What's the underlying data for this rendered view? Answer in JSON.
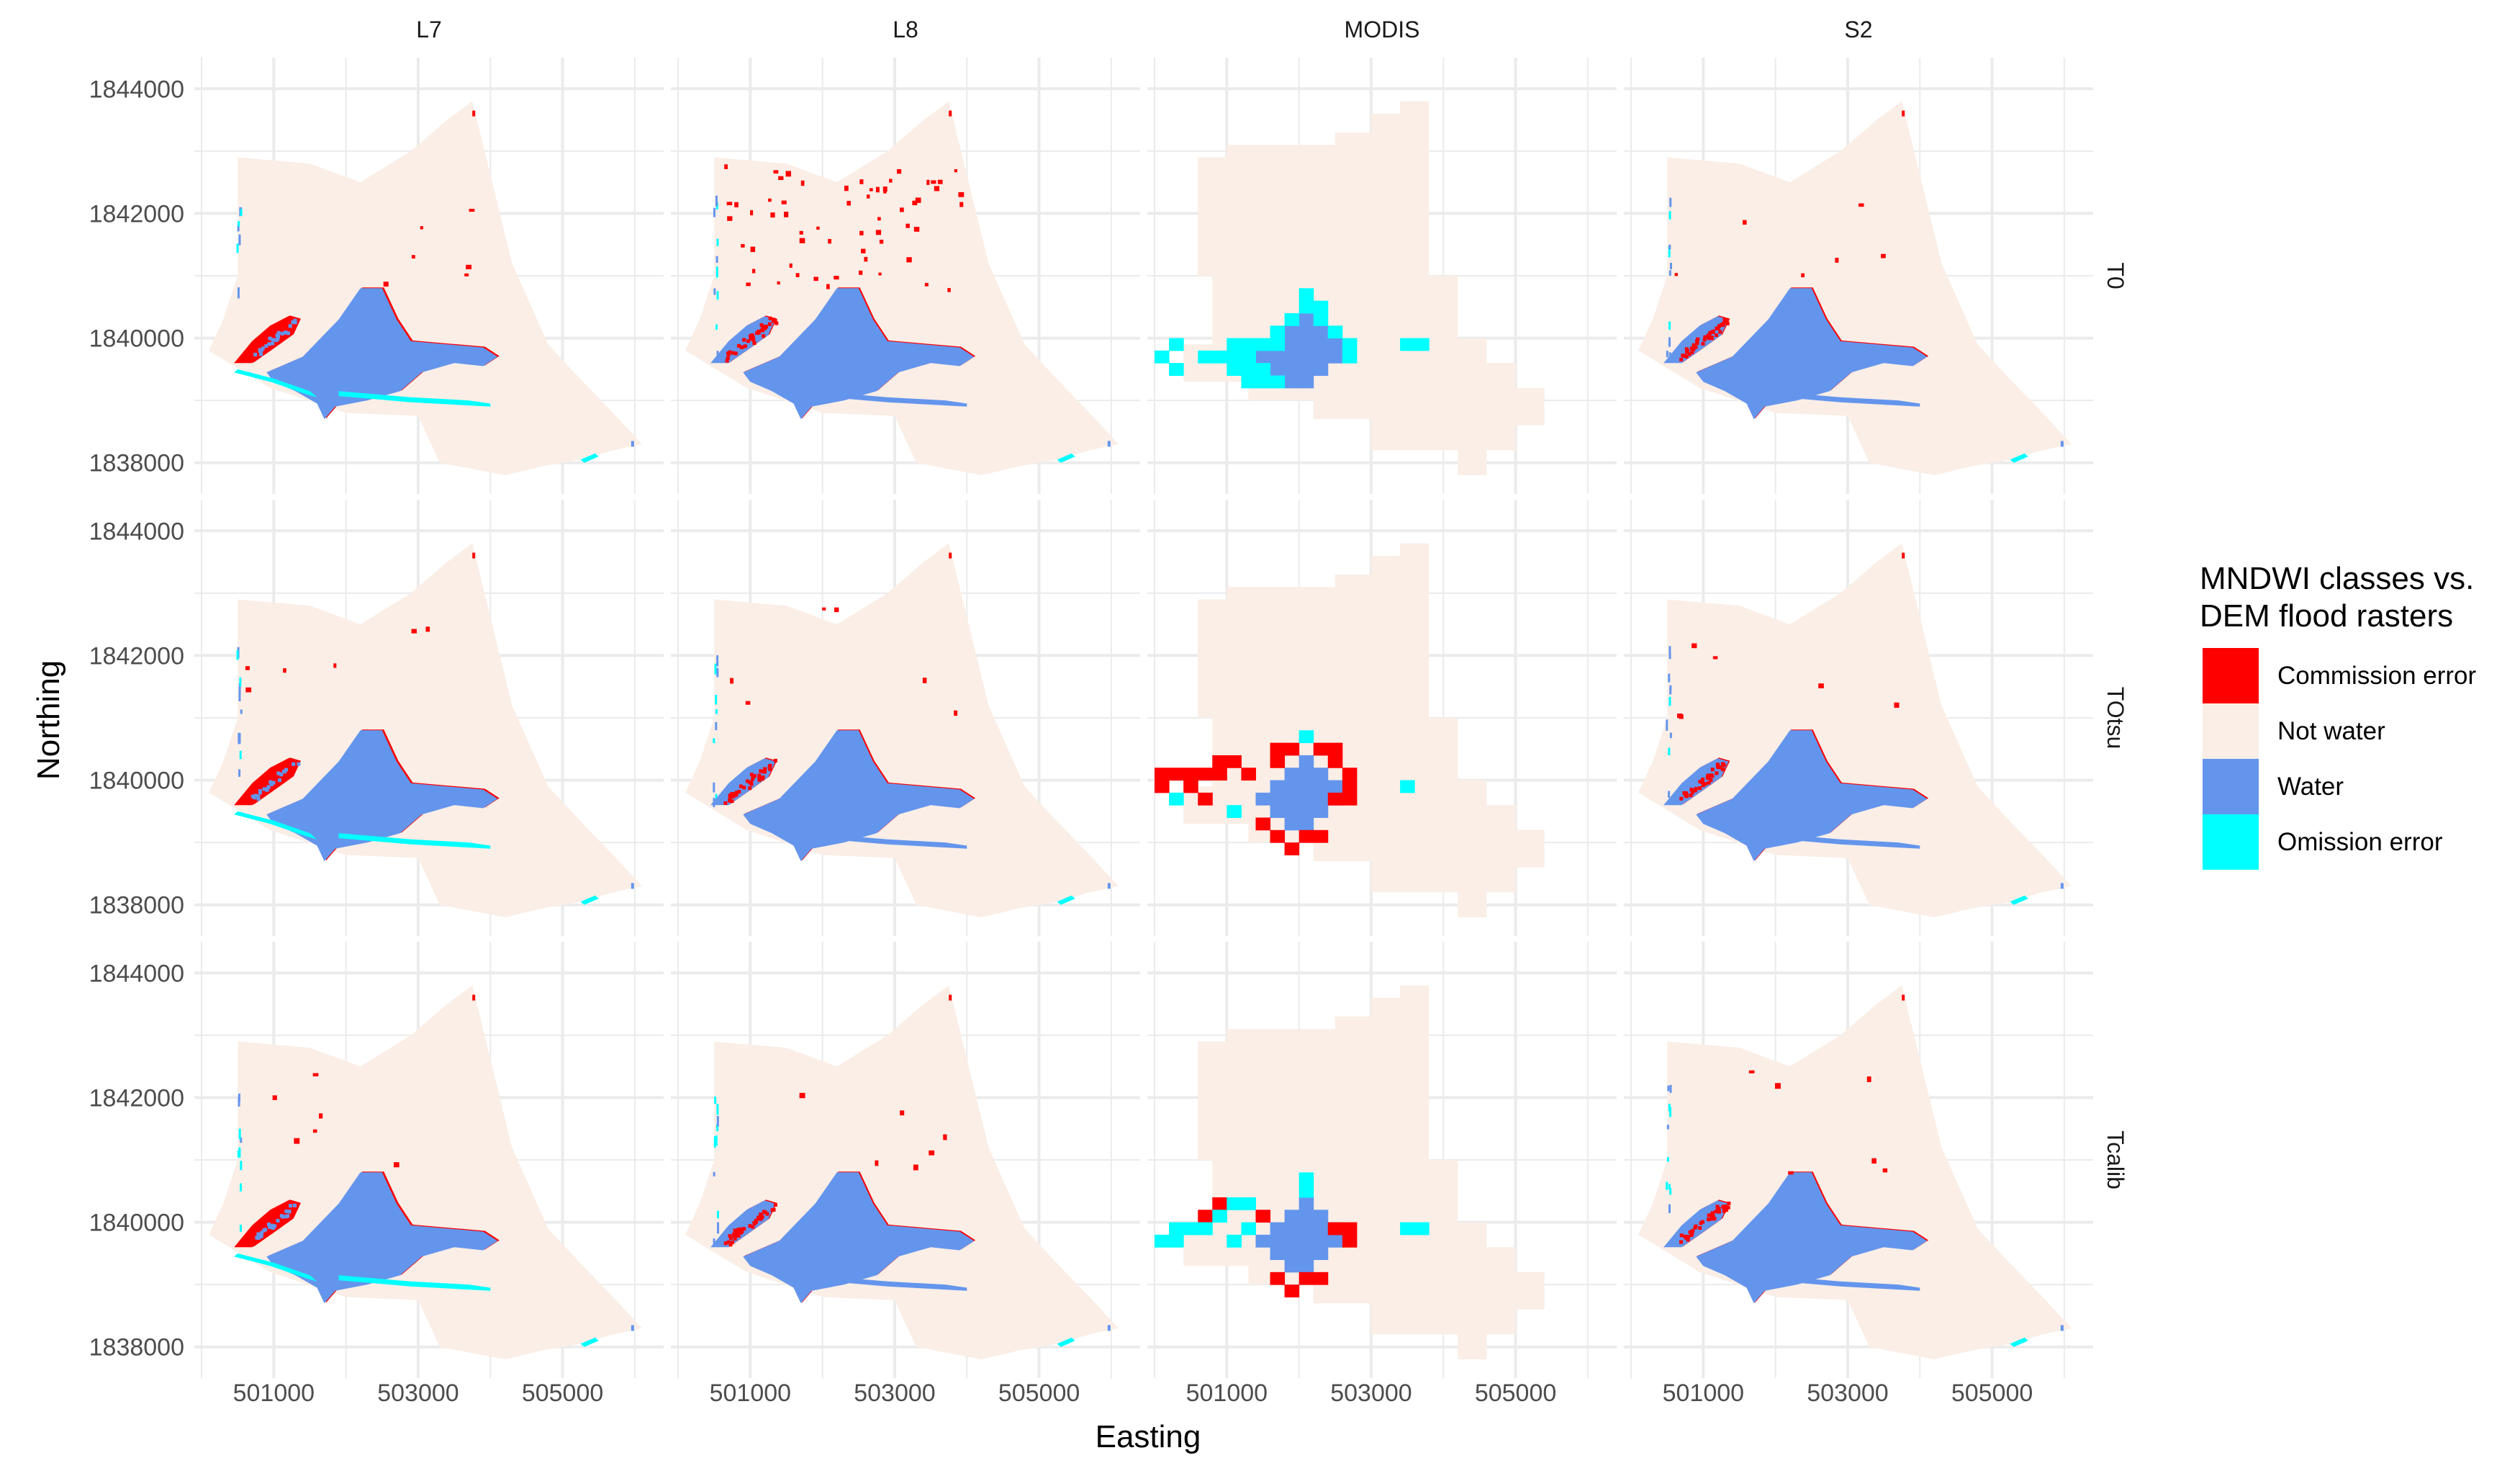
{
  "chart_data": {
    "type": "heatmap",
    "title": "",
    "xlabel": "Easting",
    "ylabel": "Northing",
    "xlim": [
      499900,
      506400
    ],
    "ylim": [
      1837500,
      1844500
    ],
    "x_ticks": [
      501000,
      503000,
      505000
    ],
    "x_tick_labels": [
      "501000",
      "503000",
      "505000"
    ],
    "y_ticks": [
      1838000,
      1840000,
      1842000,
      1844000
    ],
    "y_tick_labels": [
      "1838000",
      "1840000",
      "1842000",
      "1844000"
    ],
    "grid": true,
    "facet_columns": [
      "L7",
      "L8",
      "MODIS",
      "S2"
    ],
    "facet_rows": [
      "T0",
      "TOtsu",
      "Tcalib"
    ],
    "legend": {
      "title_line1": "MNDWI classes vs.",
      "title_line2": "DEM flood rasters",
      "placement": "right",
      "entries": [
        {
          "label": "Commission error",
          "color": "#ff0000"
        },
        {
          "label": "Not water",
          "color": "#faeee6"
        },
        {
          "label": "Water",
          "color": "#6495ed"
        },
        {
          "label": "Omission error",
          "color": "#00ffff"
        }
      ]
    },
    "colors": {
      "commission": "#ff0000",
      "not_water": "#faeee6",
      "water": "#6495ed",
      "omission": "#00ffff",
      "grid": "#ebebeb"
    },
    "regions": {
      "outline": [
        [
          500500,
          1842900
        ],
        [
          501500,
          1842800
        ],
        [
          502200,
          1842500
        ],
        [
          502900,
          1843000
        ],
        [
          503400,
          1843500
        ],
        [
          503750,
          1843800
        ],
        [
          504300,
          1841200
        ],
        [
          504800,
          1839900
        ],
        [
          505200,
          1839400
        ],
        [
          505700,
          1838800
        ],
        [
          506100,
          1838300
        ],
        [
          505700,
          1838200
        ],
        [
          505250,
          1838050
        ],
        [
          504750,
          1837950
        ],
        [
          504200,
          1837800
        ],
        [
          503300,
          1838000
        ],
        [
          503000,
          1838750
        ],
        [
          502000,
          1838800
        ],
        [
          500950,
          1839200
        ],
        [
          500100,
          1839800
        ],
        [
          500300,
          1840300
        ],
        [
          500500,
          1841000
        ]
      ],
      "outline_modis": [
        [
          500600,
          1842900
        ],
        [
          501000,
          1842900
        ],
        [
          501000,
          1843100
        ],
        [
          502500,
          1843100
        ],
        [
          502500,
          1843300
        ],
        [
          503000,
          1843300
        ],
        [
          503000,
          1843600
        ],
        [
          503400,
          1843600
        ],
        [
          503400,
          1843800
        ],
        [
          503800,
          1843800
        ],
        [
          503800,
          1841000
        ],
        [
          504200,
          1841000
        ],
        [
          504200,
          1840000
        ],
        [
          504600,
          1840000
        ],
        [
          504600,
          1839600
        ],
        [
          505000,
          1839600
        ],
        [
          505000,
          1839200
        ],
        [
          505400,
          1839200
        ],
        [
          505400,
          1838600
        ],
        [
          505000,
          1838600
        ],
        [
          505000,
          1838200
        ],
        [
          504600,
          1838200
        ],
        [
          504600,
          1837800
        ],
        [
          504200,
          1837800
        ],
        [
          504200,
          1838200
        ],
        [
          503000,
          1838200
        ],
        [
          503000,
          1838700
        ],
        [
          502200,
          1838700
        ],
        [
          502200,
          1839000
        ],
        [
          501300,
          1839000
        ],
        [
          501300,
          1839300
        ],
        [
          500400,
          1839300
        ],
        [
          500400,
          1839900
        ],
        [
          500800,
          1839900
        ],
        [
          500800,
          1841000
        ],
        [
          500600,
          1841000
        ]
      ],
      "main_water": [
        [
          501400,
          1839700
        ],
        [
          501900,
          1840300
        ],
        [
          502200,
          1840800
        ],
        [
          502500,
          1840800
        ],
        [
          502700,
          1840300
        ],
        [
          502900,
          1839950
        ],
        [
          503400,
          1839900
        ],
        [
          503900,
          1839850
        ],
        [
          504100,
          1839700
        ],
        [
          503900,
          1839550
        ],
        [
          503500,
          1839600
        ],
        [
          503050,
          1839450
        ],
        [
          502750,
          1839150
        ],
        [
          502300,
          1839000
        ],
        [
          501850,
          1838900
        ],
        [
          501700,
          1838700
        ],
        [
          501600,
          1838950
        ],
        [
          501300,
          1839150
        ],
        [
          501000,
          1839300
        ],
        [
          500900,
          1839450
        ],
        [
          501100,
          1839550
        ]
      ],
      "west_water": [
        [
          500450,
          1839600
        ],
        [
          500700,
          1839950
        ],
        [
          500950,
          1840200
        ],
        [
          501200,
          1840350
        ],
        [
          501350,
          1840300
        ],
        [
          501250,
          1840050
        ],
        [
          500950,
          1839800
        ],
        [
          500700,
          1839600
        ]
      ],
      "channel": [
        [
          501900,
          1839150
        ],
        [
          502900,
          1839050
        ],
        [
          503700,
          1839000
        ],
        [
          504000,
          1838950
        ],
        [
          504000,
          1838900
        ],
        [
          503700,
          1838920
        ],
        [
          502900,
          1838970
        ],
        [
          501900,
          1839070
        ]
      ],
      "modis_water_cells": [
        [
          502000,
          1840200
        ],
        [
          501800,
          1840000
        ],
        [
          502000,
          1840000
        ],
        [
          502200,
          1840000
        ],
        [
          501600,
          1839800
        ],
        [
          501800,
          1839800
        ],
        [
          502000,
          1839800
        ],
        [
          502200,
          1839800
        ],
        [
          502400,
          1839800
        ],
        [
          501400,
          1839600
        ],
        [
          501600,
          1839600
        ],
        [
          501800,
          1839600
        ],
        [
          502000,
          1839600
        ],
        [
          502200,
          1839600
        ],
        [
          502400,
          1839600
        ],
        [
          501600,
          1839400
        ],
        [
          501800,
          1839400
        ],
        [
          502000,
          1839400
        ],
        [
          502200,
          1839400
        ],
        [
          501800,
          1839200
        ],
        [
          502000,
          1839200
        ]
      ],
      "modis_omission_t0": [
        [
          502000,
          1840600
        ],
        [
          502000,
          1840400
        ],
        [
          502200,
          1840400
        ],
        [
          501800,
          1840200
        ],
        [
          502200,
          1840200
        ],
        [
          501600,
          1840000
        ],
        [
          502400,
          1840000
        ],
        [
          500200,
          1839800
        ],
        [
          501000,
          1839800
        ],
        [
          501200,
          1839800
        ],
        [
          501400,
          1839800
        ],
        [
          501600,
          1839800
        ],
        [
          502600,
          1839800
        ],
        [
          503400,
          1839800
        ],
        [
          503600,
          1839800
        ],
        [
          500000,
          1839600
        ],
        [
          500600,
          1839600
        ],
        [
          500800,
          1839600
        ],
        [
          501000,
          1839600
        ],
        [
          501200,
          1839600
        ],
        [
          502600,
          1839600
        ],
        [
          500200,
          1839400
        ],
        [
          501000,
          1839400
        ],
        [
          501200,
          1839400
        ],
        [
          501400,
          1839400
        ],
        [
          501200,
          1839200
        ],
        [
          501400,
          1839200
        ],
        [
          501600,
          1839200
        ]
      ],
      "modis_commission_otsu": [
        [
          500000,
          1840000
        ],
        [
          500200,
          1840000
        ],
        [
          500400,
          1840000
        ],
        [
          500600,
          1840000
        ],
        [
          500800,
          1840000
        ],
        [
          500800,
          1840200
        ],
        [
          501000,
          1840200
        ],
        [
          501200,
          1840000
        ],
        [
          501600,
          1840200
        ],
        [
          501600,
          1840400
        ],
        [
          501800,
          1840400
        ],
        [
          502200,
          1840400
        ],
        [
          502400,
          1840400
        ],
        [
          502400,
          1840200
        ],
        [
          502600,
          1840000
        ],
        [
          502600,
          1839800
        ],
        [
          502400,
          1839600
        ],
        [
          502600,
          1839600
        ],
        [
          500000,
          1839800
        ],
        [
          500400,
          1839800
        ],
        [
          500600,
          1839600
        ],
        [
          501400,
          1839200
        ],
        [
          501600,
          1839000
        ],
        [
          502000,
          1839000
        ],
        [
          502200,
          1839000
        ],
        [
          501800,
          1838800
        ]
      ],
      "modis_omission_otsu": [
        [
          502000,
          1840600
        ],
        [
          500200,
          1839600
        ],
        [
          503400,
          1839800
        ],
        [
          501000,
          1839400
        ]
      ],
      "modis_commission_calib": [
        [
          500600,
          1840000
        ],
        [
          500800,
          1840200
        ],
        [
          501400,
          1840000
        ],
        [
          502400,
          1839800
        ],
        [
          502600,
          1839800
        ],
        [
          502600,
          1839600
        ],
        [
          501600,
          1839000
        ],
        [
          502000,
          1839000
        ],
        [
          502200,
          1839000
        ],
        [
          501800,
          1838800
        ]
      ],
      "modis_omission_calib": [
        [
          502000,
          1840600
        ],
        [
          502000,
          1840400
        ],
        [
          500800,
          1840000
        ],
        [
          501000,
          1840200
        ],
        [
          501200,
          1840200
        ],
        [
          500200,
          1839800
        ],
        [
          500400,
          1839800
        ],
        [
          500600,
          1839800
        ],
        [
          501200,
          1839800
        ],
        [
          503400,
          1839800
        ],
        [
          503600,
          1839800
        ],
        [
          500000,
          1839600
        ],
        [
          500200,
          1839600
        ],
        [
          501000,
          1839600
        ]
      ]
    }
  }
}
